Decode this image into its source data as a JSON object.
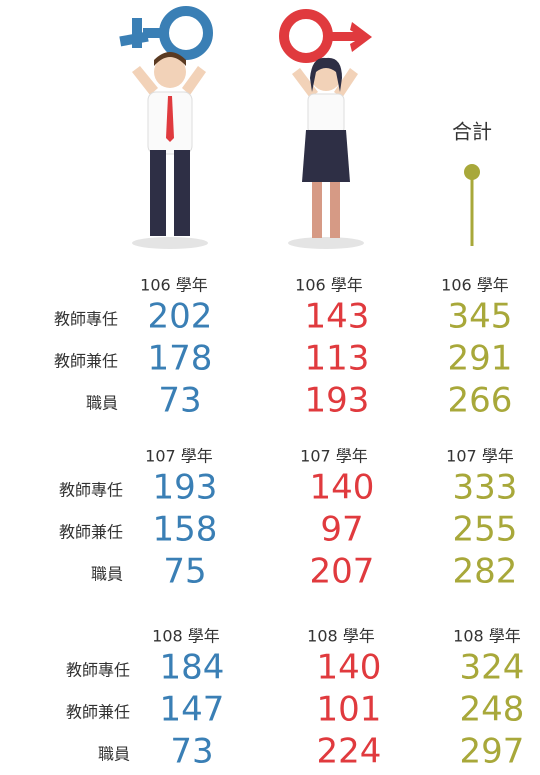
{
  "total_label": "合計",
  "groups": [
    {
      "headers": [
        "106 學年",
        "106 學年",
        "106 學年"
      ],
      "rows": [
        {
          "label": "教師專任",
          "values": [
            "202",
            "143",
            "345"
          ]
        },
        {
          "label": "教師兼任",
          "values": [
            "178",
            "113",
            "291"
          ]
        },
        {
          "label": "職員",
          "values": [
            "73",
            "193",
            "266"
          ]
        }
      ]
    },
    {
      "headers": [
        "107 學年",
        "107 學年",
        "107 學年"
      ],
      "rows": [
        {
          "label": "教師專任",
          "values": [
            "193",
            "140",
            "333"
          ]
        },
        {
          "label": "教師兼任",
          "values": [
            "158",
            "97",
            "255"
          ]
        },
        {
          "label": "職員",
          "values": [
            "75",
            "207",
            "282"
          ]
        }
      ]
    },
    {
      "headers": [
        "108 學年",
        "108 學年",
        "108 學年"
      ],
      "rows": [
        {
          "label": "教師專任",
          "values": [
            "184",
            "140",
            "324"
          ]
        },
        {
          "label": "教師兼任",
          "values": [
            "147",
            "101",
            "248"
          ]
        },
        {
          "label": "職員",
          "values": [
            "73",
            "224",
            "297"
          ]
        }
      ]
    }
  ]
}
